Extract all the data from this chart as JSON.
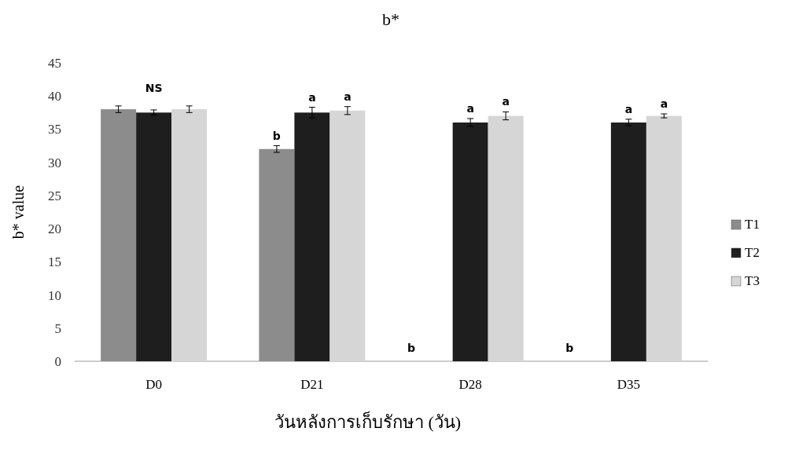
{
  "chart_data": {
    "type": "bar",
    "title": "b*",
    "xlabel": "วันหลังการเก็บรักษา (วัน)",
    "ylabel": "b* value",
    "categories": [
      "D0",
      "D21",
      "D28",
      "D35"
    ],
    "series": [
      {
        "name": "T1",
        "color": "#8c8c8c",
        "values": [
          38,
          32,
          0,
          0
        ],
        "errors": [
          0.5,
          0.5,
          null,
          null
        ]
      },
      {
        "name": "T2",
        "color": "#1e1e1e",
        "values": [
          37.5,
          37.5,
          36,
          36
        ],
        "errors": [
          0.4,
          0.8,
          0.6,
          0.5
        ]
      },
      {
        "name": "T3",
        "color": "#d6d6d6",
        "values": [
          38,
          37.8,
          37,
          37
        ],
        "errors": [
          0.5,
          0.6,
          0.6,
          0.3
        ]
      }
    ],
    "ylim": [
      0,
      45
    ],
    "yticks": [
      0,
      5,
      10,
      15,
      20,
      25,
      30,
      35,
      40,
      45
    ],
    "legend": "right",
    "grid": false,
    "annotations": [
      "NS",
      "b",
      "a",
      "a",
      "b",
      "a",
      "a",
      "b",
      "a",
      "a"
    ]
  }
}
